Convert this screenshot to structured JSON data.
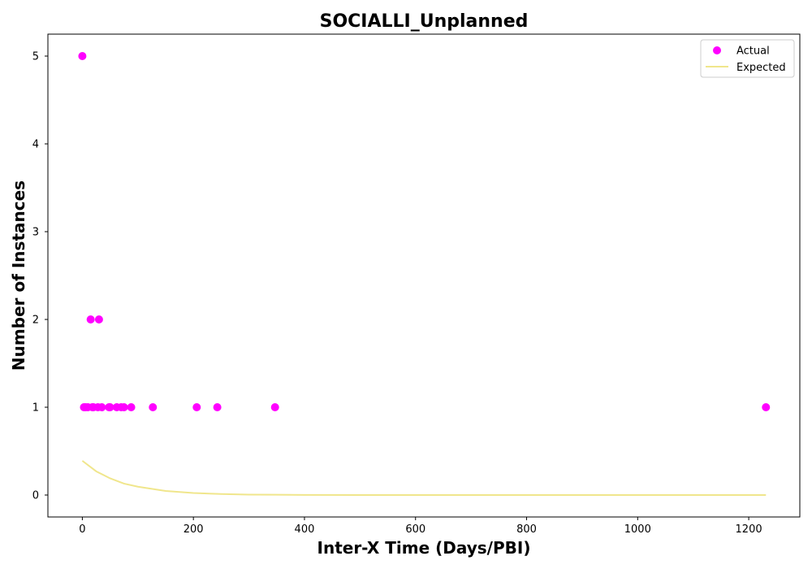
{
  "chart_data": {
    "type": "scatter",
    "title": "SOCIALLI_Unplanned",
    "xlabel": "Inter-X Time (Days/PBI)",
    "ylabel": "Number of Instances",
    "xlim": [
      -62,
      1292
    ],
    "ylim": [
      -0.25,
      5.25
    ],
    "xticks": [
      0,
      200,
      400,
      600,
      800,
      1000,
      1200
    ],
    "yticks": [
      0,
      1,
      2,
      3,
      4,
      5
    ],
    "xtick_labels": [
      "0",
      "200",
      "400",
      "600",
      "800",
      "1000",
      "1200"
    ],
    "ytick_labels": [
      "0",
      "1",
      "2",
      "3",
      "4",
      "5"
    ],
    "grid": false,
    "legend_position": "top-right",
    "series": [
      {
        "name": "Actual",
        "kind": "scatter",
        "color": "#ff00ff",
        "points": [
          {
            "x": 0,
            "y": 5
          },
          {
            "x": 3,
            "y": 1
          },
          {
            "x": 6,
            "y": 1
          },
          {
            "x": 10,
            "y": 1
          },
          {
            "x": 15,
            "y": 2
          },
          {
            "x": 18,
            "y": 1
          },
          {
            "x": 20,
            "y": 1
          },
          {
            "x": 28,
            "y": 1
          },
          {
            "x": 30,
            "y": 2
          },
          {
            "x": 35,
            "y": 1
          },
          {
            "x": 48,
            "y": 1
          },
          {
            "x": 50,
            "y": 1
          },
          {
            "x": 62,
            "y": 1
          },
          {
            "x": 70,
            "y": 1
          },
          {
            "x": 75,
            "y": 1
          },
          {
            "x": 88,
            "y": 1
          },
          {
            "x": 127,
            "y": 1
          },
          {
            "x": 206,
            "y": 1
          },
          {
            "x": 243,
            "y": 1
          },
          {
            "x": 347,
            "y": 1
          },
          {
            "x": 1231,
            "y": 1
          }
        ]
      },
      {
        "name": "Expected",
        "kind": "line",
        "color": "#f0e68c",
        "points": [
          {
            "x": 0,
            "y": 0.39
          },
          {
            "x": 25,
            "y": 0.27
          },
          {
            "x": 50,
            "y": 0.19
          },
          {
            "x": 75,
            "y": 0.13
          },
          {
            "x": 100,
            "y": 0.095
          },
          {
            "x": 150,
            "y": 0.046
          },
          {
            "x": 200,
            "y": 0.023
          },
          {
            "x": 250,
            "y": 0.011
          },
          {
            "x": 300,
            "y": 0.005
          },
          {
            "x": 350,
            "y": 0.003
          },
          {
            "x": 400,
            "y": 0.001
          },
          {
            "x": 500,
            "y": 0.0
          },
          {
            "x": 700,
            "y": 0.0
          },
          {
            "x": 1000,
            "y": 0.0
          },
          {
            "x": 1231,
            "y": 0.0
          }
        ]
      }
    ]
  }
}
